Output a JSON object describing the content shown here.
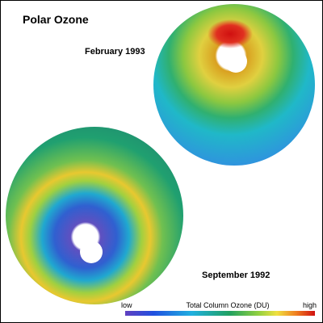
{
  "title": "Polar Ozone",
  "panels": [
    {
      "label": "February 1993"
    },
    {
      "label": "September 1992"
    }
  ],
  "colorbar": {
    "low": "low",
    "title": "Total Column Ozone (DU)",
    "high": "high"
  }
}
